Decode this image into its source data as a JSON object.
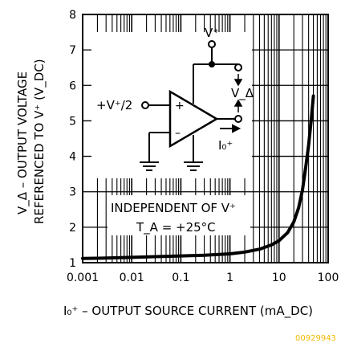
{
  "chart_data": {
    "type": "line",
    "xscale": "log",
    "xlim": [
      0.001,
      100
    ],
    "ylim": [
      1,
      8
    ],
    "grid": true,
    "xticks": [
      "0.001",
      "0.01",
      "0.1",
      "1",
      "10",
      "100"
    ],
    "yticks": [
      "1",
      "2",
      "3",
      "4",
      "5",
      "6",
      "7",
      "8"
    ],
    "xlabel": "I₀⁺ – OUTPUT SOURCE CURRENT (mA_DC)",
    "ylabel_line1": "V_Δ – OUTPUT VOLTAGE",
    "ylabel_line2": "REFERENCED TO V⁺ (V_DC)",
    "annotation_line1": "INDEPENDENT OF V⁺",
    "annotation_line2": "T_A = +25°C",
    "series": [
      {
        "color": "#000000",
        "points": [
          [
            0.001,
            1.12
          ],
          [
            0.003,
            1.13
          ],
          [
            0.01,
            1.15
          ],
          [
            0.03,
            1.17
          ],
          [
            0.1,
            1.19
          ],
          [
            0.3,
            1.21
          ],
          [
            1,
            1.25
          ],
          [
            2,
            1.3
          ],
          [
            4,
            1.38
          ],
          [
            7,
            1.5
          ],
          [
            10,
            1.62
          ],
          [
            15,
            1.85
          ],
          [
            20,
            2.15
          ],
          [
            25,
            2.55
          ],
          [
            30,
            3.05
          ],
          [
            35,
            3.7
          ],
          [
            40,
            4.3
          ],
          [
            45,
            5.0
          ],
          [
            50,
            5.7
          ]
        ]
      }
    ],
    "inset": {
      "input_label": "+V⁺/2",
      "supply_label": "V⁺",
      "output_label": "V_Δ",
      "current_label": "I₀⁺",
      "plus_sign": "+",
      "minus_sign": "–"
    },
    "watermark": "00929943"
  }
}
